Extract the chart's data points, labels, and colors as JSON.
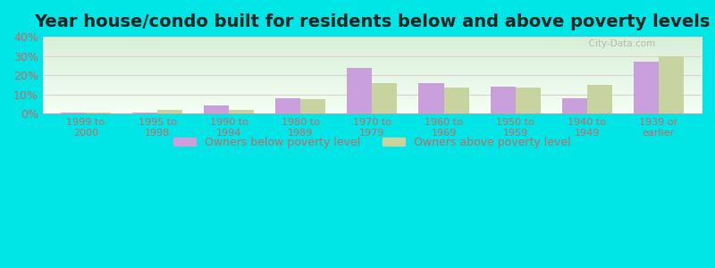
{
  "title": "Year house/condo built for residents below and above poverty levels",
  "categories": [
    "1999 to\n2000",
    "1995 to\n1998",
    "1990 to\n1994",
    "1980 to\n1989",
    "1970 to\n1979",
    "1960 to\n1969",
    "1950 to\n1959",
    "1940 to\n1949",
    "1939 or\nearlier"
  ],
  "below_poverty": [
    0.5,
    0.5,
    4.5,
    8.0,
    24.0,
    16.0,
    14.0,
    8.0,
    27.0
  ],
  "above_poverty": [
    0.5,
    2.0,
    2.0,
    7.5,
    16.0,
    13.5,
    13.5,
    15.0,
    30.0
  ],
  "below_color": "#c9a0dc",
  "above_color": "#c8d4a0",
  "ylim": [
    0,
    40
  ],
  "yticks": [
    0,
    10,
    20,
    30,
    40
  ],
  "background_top": "#d8eed8",
  "background_bottom": "#f5fff5",
  "outer_background": "#00e5e5",
  "title_fontsize": 14,
  "legend_below_label": "Owners below poverty level",
  "legend_above_label": "Owners above poverty level",
  "bar_width": 0.35,
  "grid_color": "#e0d0d0",
  "axis_label_color": "#cc6666",
  "title_color": "#222222"
}
